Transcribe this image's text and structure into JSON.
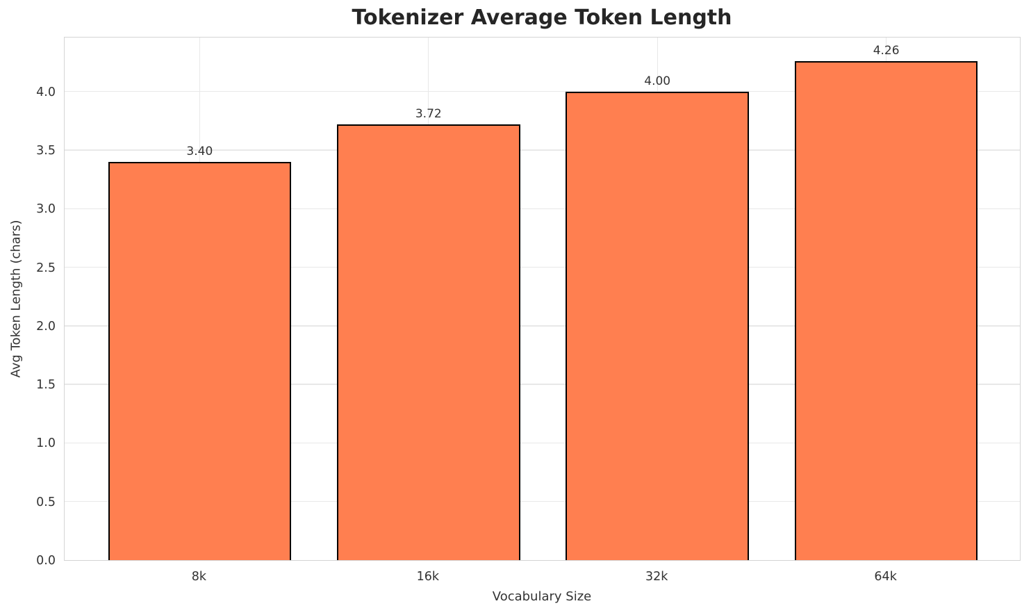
{
  "chart_data": {
    "type": "bar",
    "title": "Tokenizer Average Token Length",
    "xlabel": "Vocabulary Size",
    "ylabel": "Avg Token Length (chars)",
    "categories": [
      "8k",
      "16k",
      "32k",
      "64k"
    ],
    "values": [
      3.4,
      3.72,
      4.0,
      4.26
    ],
    "value_labels": [
      "3.40",
      "3.72",
      "4.00",
      "4.26"
    ],
    "yticks": [
      0.0,
      0.5,
      1.0,
      1.5,
      2.0,
      2.5,
      3.0,
      3.5,
      4.0
    ],
    "ytick_labels": [
      "0.0",
      "0.5",
      "1.0",
      "1.5",
      "2.0",
      "2.5",
      "3.0",
      "3.5",
      "4.0"
    ],
    "ylim": [
      0,
      4.473
    ],
    "xlim_units": [
      -0.59,
      3.59
    ],
    "bar_width_units": 0.8,
    "grid": true,
    "legend": "none",
    "bar_color": "#FF7F50",
    "bar_edge_color": "#000000",
    "grid_color": "#e8e8e8",
    "spine_color": "#d4d4d4",
    "text_color": "#333333",
    "title_color": "#262626"
  }
}
